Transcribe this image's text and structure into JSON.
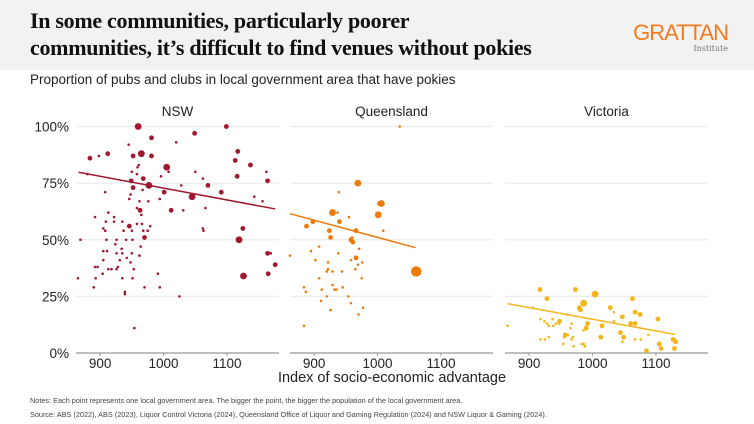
{
  "header": {
    "title_line1": "In some communities, particularly poorer",
    "title_line2": "communities, it’s difficult to find venues without pokies",
    "logo_name": "GRATTAN",
    "logo_sub": "Institute"
  },
  "notes": "Notes: Each point represents one local government area. The bigger the point, the bigger the population of the local government area.",
  "source": "Source: ABS (2022), ABS (2023), Liquor Control Victoria (2024), Queensland Office of Liquor and Gaming Regulation (2024) and NSW Liquor & Gaming (2024).",
  "colors": {
    "nsw": "#a0182f",
    "qld": "#ee7a0b",
    "vic": "#f6b417",
    "grid": "#ececec",
    "axis": "#999999",
    "logo": "#f37b1e"
  },
  "chart_data": {
    "type": "scatter",
    "title": "Proportion of pubs and clubs in local government area that have pokies",
    "xlabel": "Index of socio-economic advantage",
    "ylabel": "",
    "xlim": [
      862,
      1182
    ],
    "ylim": [
      0,
      100
    ],
    "x_ticks": [
      "900",
      "1000",
      "1100"
    ],
    "x_tick_values": [
      900,
      1000,
      1100
    ],
    "y_ticks": [
      "0%",
      "25%",
      "50%",
      "75%",
      "100%"
    ],
    "y_tick_values": [
      0,
      25,
      50,
      75,
      100
    ],
    "point_format": "[index, percent, relative population size 1-4]",
    "panels": [
      {
        "name": "NSW",
        "color_key": "nsw",
        "trend": [
          [
            866,
            79.8
          ],
          [
            1176,
            63.6
          ]
        ],
        "points": [
          [
            960,
            100,
            3
          ],
          [
            1099,
            100,
            2
          ],
          [
            981,
            95,
            2
          ],
          [
            1049,
            97,
            2
          ],
          [
            945,
            92,
            1
          ],
          [
            1020,
            93,
            1
          ],
          [
            884,
            86,
            2
          ],
          [
            898,
            87,
            1
          ],
          [
            912,
            88,
            2
          ],
          [
            952,
            87,
            2
          ],
          [
            965,
            88,
            3
          ],
          [
            981,
            87,
            2
          ],
          [
            961,
            83,
            1
          ],
          [
            959,
            82,
            1
          ],
          [
            1005,
            82,
            3
          ],
          [
            1008,
            80,
            1
          ],
          [
            1117,
            89,
            2
          ],
          [
            1113,
            85,
            2
          ],
          [
            1137,
            83,
            2
          ],
          [
            1162,
            80,
            1
          ],
          [
            1164,
            76,
            2
          ],
          [
            1116,
            78,
            2
          ],
          [
            1050,
            80,
            1
          ],
          [
            1062,
            77,
            1
          ],
          [
            1070,
            74,
            2
          ],
          [
            1091,
            71,
            2
          ],
          [
            1045,
            69,
            3
          ],
          [
            1028,
            74,
            1
          ],
          [
            996,
            78,
            1
          ],
          [
            977,
            74,
            3
          ],
          [
            968,
            77,
            2
          ],
          [
            949,
            76,
            2
          ],
          [
            950,
            80,
            1
          ],
          [
            958,
            79,
            1
          ],
          [
            952,
            73,
            2
          ],
          [
            967,
            72,
            1
          ],
          [
            948,
            70,
            1
          ],
          [
            1001,
            71,
            2
          ],
          [
            946,
            68,
            1
          ],
          [
            994,
            68,
            1
          ],
          [
            962,
            67,
            1
          ],
          [
            976,
            67,
            1
          ],
          [
            908,
            71,
            1
          ],
          [
            880,
            79,
            1
          ],
          [
            1143,
            69,
            1
          ],
          [
            1156,
            67,
            1
          ],
          [
            1012,
            63,
            2
          ],
          [
            1031,
            63,
            1
          ],
          [
            1066,
            64,
            1
          ],
          [
            963,
            63,
            2
          ],
          [
            958,
            64,
            1
          ],
          [
            965,
            61,
            1
          ],
          [
            892,
            60,
            1
          ],
          [
            913,
            62,
            1
          ],
          [
            922,
            60,
            1
          ],
          [
            909,
            58,
            1
          ],
          [
            922,
            58,
            1
          ],
          [
            935,
            58,
            1
          ],
          [
            946,
            56,
            2
          ],
          [
            958,
            57,
            1
          ],
          [
            966,
            57,
            1
          ],
          [
            979,
            56,
            1
          ],
          [
            937,
            54,
            1
          ],
          [
            950,
            54,
            1
          ],
          [
            968,
            54,
            1
          ],
          [
            975,
            54,
            1
          ],
          [
            1062,
            55,
            1
          ],
          [
            1063,
            54,
            1
          ],
          [
            1125,
            55,
            2
          ],
          [
            905,
            55,
            1
          ],
          [
            908,
            54,
            1
          ],
          [
            869,
            50,
            1
          ],
          [
            970,
            51,
            2
          ],
          [
            1119,
            50,
            3
          ],
          [
            910,
            50,
            1
          ],
          [
            926,
            50,
            1
          ],
          [
            941,
            50,
            1
          ],
          [
            951,
            50,
            1
          ],
          [
            924,
            48,
            1
          ],
          [
            934,
            46,
            1
          ],
          [
            964,
            47,
            1
          ],
          [
            905,
            45,
            1
          ],
          [
            911,
            45,
            1
          ],
          [
            926,
            44,
            1
          ],
          [
            935,
            44,
            1
          ],
          [
            950,
            44,
            1
          ],
          [
            962,
            43,
            1
          ],
          [
            905,
            41,
            1
          ],
          [
            942,
            42,
            1
          ],
          [
            931,
            41,
            1
          ],
          [
            948,
            40,
            1
          ],
          [
            892,
            38,
            1
          ],
          [
            896,
            38,
            1
          ],
          [
            913,
            37,
            1
          ],
          [
            918,
            37,
            1
          ],
          [
            928,
            38,
            1
          ],
          [
            926,
            37,
            1
          ],
          [
            953,
            37,
            1
          ],
          [
            904,
            35,
            1
          ],
          [
            991,
            35,
            1
          ],
          [
            865,
            33,
            1
          ],
          [
            893,
            33,
            1
          ],
          [
            935,
            33,
            1
          ],
          [
            951,
            33,
            1
          ],
          [
            890,
            29,
            1
          ],
          [
            939,
            27,
            1
          ],
          [
            939,
            26,
            1
          ],
          [
            970,
            29,
            1
          ],
          [
            994,
            29,
            1
          ],
          [
            1025,
            25,
            1
          ],
          [
            954,
            11,
            1
          ],
          [
            1164,
            44,
            2
          ],
          [
            1169,
            44,
            1
          ],
          [
            1176,
            39,
            2
          ],
          [
            1126,
            34,
            3
          ],
          [
            1165,
            35,
            2
          ]
        ]
      },
      {
        "name": "Queensland",
        "color_key": "qld",
        "trend": [
          [
            862,
            61.5
          ],
          [
            1060,
            46.5
          ]
        ],
        "points": [
          [
            1035,
            100,
            1
          ],
          [
            969,
            75,
            3
          ],
          [
            939,
            71,
            1
          ],
          [
            1006,
            66,
            3
          ],
          [
            1003,
            66,
            2
          ],
          [
            929,
            62,
            3
          ],
          [
            937,
            62,
            1
          ],
          [
            955,
            60,
            1
          ],
          [
            1001,
            61,
            3
          ],
          [
            940,
            58,
            2
          ],
          [
            898,
            58,
            2
          ],
          [
            888,
            56,
            2
          ],
          [
            924,
            54,
            2
          ],
          [
            966,
            54,
            2
          ],
          [
            1009,
            54,
            1
          ],
          [
            926,
            51,
            2
          ],
          [
            960,
            51,
            1
          ],
          [
            958,
            50,
            2
          ],
          [
            961,
            49,
            2
          ],
          [
            971,
            46,
            1
          ],
          [
            908,
            47,
            1
          ],
          [
            862,
            43,
            1
          ],
          [
            895,
            45,
            1
          ],
          [
            938,
            44,
            1
          ],
          [
            902,
            41,
            1
          ],
          [
            922,
            40,
            1
          ],
          [
            958,
            41,
            1
          ],
          [
            966,
            42,
            2
          ],
          [
            976,
            40,
            1
          ],
          [
            969,
            39,
            1
          ],
          [
            965,
            37,
            1
          ],
          [
            922,
            37,
            1
          ],
          [
            920,
            36,
            1
          ],
          [
            929,
            36,
            1
          ],
          [
            944,
            36,
            1
          ],
          [
            1061,
            36,
            4
          ],
          [
            975,
            33,
            1
          ],
          [
            908,
            33,
            1
          ],
          [
            884,
            29,
            1
          ],
          [
            887,
            27,
            1
          ],
          [
            912,
            28,
            1
          ],
          [
            929,
            30,
            1
          ],
          [
            932,
            28,
            1
          ],
          [
            935,
            28,
            1
          ],
          [
            945,
            29,
            1
          ],
          [
            920,
            25,
            1
          ],
          [
            954,
            25,
            1
          ],
          [
            911,
            23,
            1
          ],
          [
            958,
            22,
            1
          ],
          [
            926,
            19,
            1
          ],
          [
            977,
            20,
            1
          ],
          [
            970,
            17,
            1
          ],
          [
            884,
            12,
            1
          ]
        ]
      },
      {
        "name": "Victoria",
        "color_key": "vic",
        "trend": [
          [
            866,
            21.8
          ],
          [
            1130,
            8.2
          ]
        ],
        "points": [
          [
            917,
            28,
            2
          ],
          [
            928,
            24,
            2
          ],
          [
            973,
            28,
            2
          ],
          [
            1004,
            26,
            3
          ],
          [
            986,
            22,
            3
          ],
          [
            979,
            20,
            2
          ],
          [
            981,
            19,
            2
          ],
          [
            906,
            20,
            1
          ],
          [
            960,
            17,
            1
          ],
          [
            1028,
            20,
            2
          ],
          [
            1034,
            18,
            1
          ],
          [
            1047,
            16,
            2
          ],
          [
            1063,
            24,
            2
          ],
          [
            1067,
            18,
            2
          ],
          [
            1075,
            17,
            2
          ],
          [
            1103,
            15,
            2
          ],
          [
            1034,
            14,
            1
          ],
          [
            1060,
            13,
            2
          ],
          [
            1067,
            13,
            2
          ],
          [
            1015,
            12,
            2
          ],
          [
            992,
            13,
            2
          ],
          [
            990,
            11,
            2
          ],
          [
            986,
            10,
            1
          ],
          [
            965,
            11,
            1
          ],
          [
            967,
            13,
            1
          ],
          [
            948,
            14,
            2
          ],
          [
            947,
            13,
            1
          ],
          [
            937,
            15,
            1
          ],
          [
            918,
            15,
            1
          ],
          [
            924,
            14,
            1
          ],
          [
            928,
            13,
            1
          ],
          [
            931,
            12,
            1
          ],
          [
            938,
            12,
            1
          ],
          [
            942,
            13,
            1
          ],
          [
            866,
            12,
            1
          ],
          [
            931,
            7,
            1
          ],
          [
            918,
            6,
            1
          ],
          [
            925,
            6,
            1
          ],
          [
            957,
            8,
            2
          ],
          [
            961,
            8,
            1
          ],
          [
            955,
            7,
            1
          ],
          [
            969,
            7,
            1
          ],
          [
            967,
            6,
            1
          ],
          [
            954,
            4,
            1
          ],
          [
            970,
            3,
            1
          ],
          [
            983,
            4,
            1
          ],
          [
            986,
            4,
            1
          ],
          [
            988,
            3,
            1
          ],
          [
            1013,
            7,
            2
          ],
          [
            1044,
            9,
            2
          ],
          [
            1049,
            7,
            2
          ],
          [
            1047,
            5,
            1
          ],
          [
            1067,
            6,
            1
          ],
          [
            1076,
            6,
            1
          ],
          [
            1088,
            8,
            1
          ],
          [
            1105,
            4,
            2
          ],
          [
            1108,
            2,
            2
          ],
          [
            1085,
            1,
            2
          ],
          [
            1127,
            6,
            2
          ],
          [
            1131,
            5,
            2
          ],
          [
            1129,
            2,
            2
          ]
        ]
      }
    ]
  }
}
